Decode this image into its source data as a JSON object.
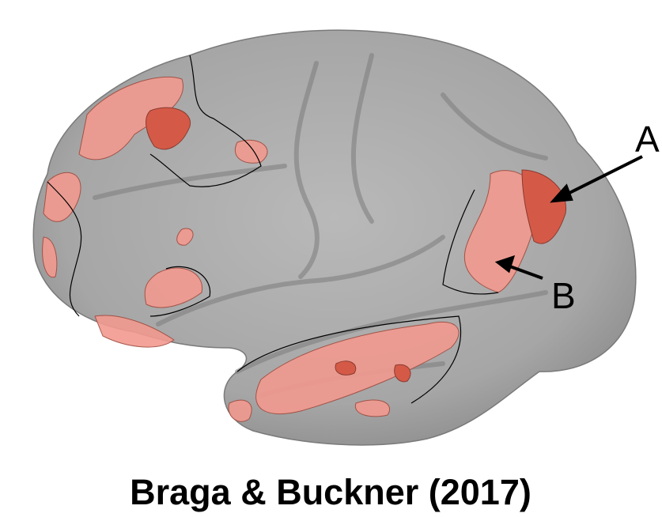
{
  "labels": {
    "a": "A",
    "b": "B"
  },
  "caption": "Braga & Buckner (2017)"
}
